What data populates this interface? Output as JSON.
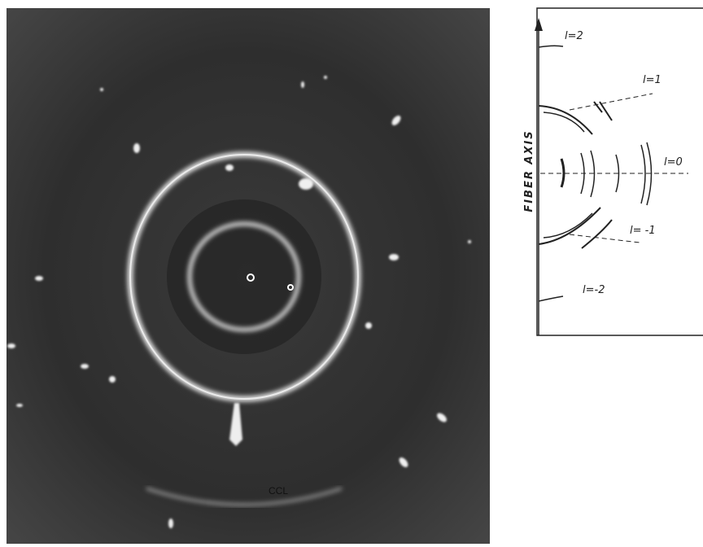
{
  "photo": {
    "annotation": "CCL"
  },
  "diagram": {
    "axis_label": "FIBER AXIS",
    "layer_lines": [
      "l=2",
      "l=1",
      "l=0",
      "l= -1",
      "l=-2"
    ]
  }
}
